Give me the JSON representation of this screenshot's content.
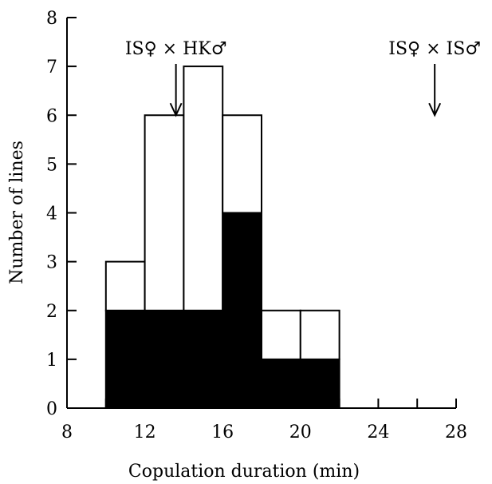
{
  "chart_data": {
    "type": "bar",
    "stacked": true,
    "bins": [
      [
        10,
        12
      ],
      [
        12,
        14
      ],
      [
        14,
        16
      ],
      [
        16,
        18
      ],
      [
        18,
        20
      ],
      [
        20,
        22
      ]
    ],
    "series": [
      {
        "values": [
          2,
          2,
          2,
          4,
          1,
          1
        ],
        "color": "#000000"
      },
      {
        "values": [
          1,
          4,
          5,
          2,
          1,
          1
        ],
        "color": "#ffffff"
      }
    ],
    "totals": [
      3,
      6,
      7,
      6,
      2,
      2
    ],
    "xlabel": "Copulation duration (min)",
    "ylabel": "Number of lines",
    "xlim": [
      8,
      28
    ],
    "ylim": [
      0,
      8
    ],
    "xticks": [
      8,
      12,
      16,
      20,
      24,
      28
    ],
    "xminor": [
      10,
      14,
      18,
      22,
      26
    ],
    "yticks": [
      0,
      1,
      2,
      3,
      4,
      5,
      6,
      7,
      8
    ],
    "grid": false,
    "annotations": [
      {
        "text": "IS♀ × HK♂",
        "x": 13.6,
        "y_arrow_tip": 6
      },
      {
        "text": "IS♀ × IS♂",
        "x": 26.9,
        "y_arrow_tip": 6
      }
    ]
  }
}
